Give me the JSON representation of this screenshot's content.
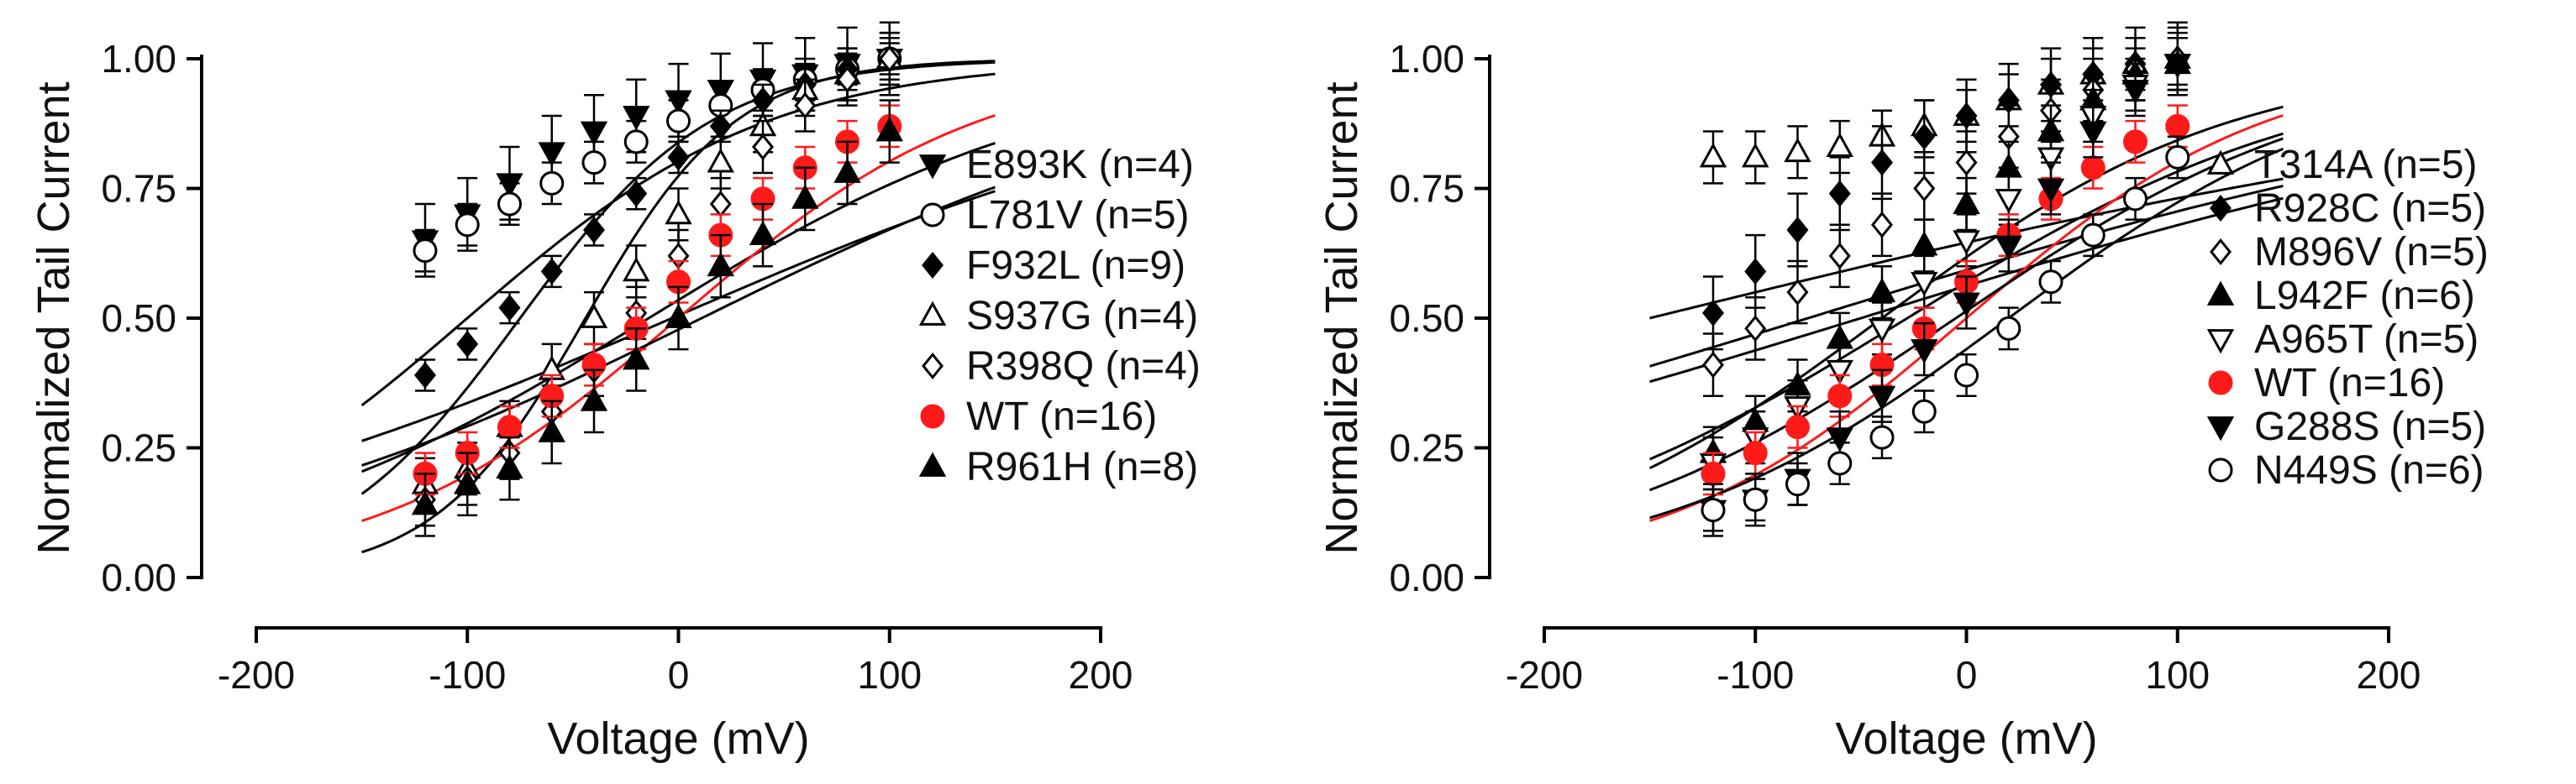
{
  "chart_data": [
    {
      "type": "scatter",
      "title": "",
      "xlabel": "Voltage (mV)",
      "ylabel": "Normalized Tail Current",
      "xlim": [
        -200,
        200
      ],
      "ylim": [
        0,
        1.0
      ],
      "xticks": [
        "-200",
        "-100",
        "0",
        "100",
        "200"
      ],
      "yticks": [
        "0.00",
        "0.25",
        "0.50",
        "0.75",
        "1.00"
      ],
      "grid": false,
      "legend_position": "right",
      "series": [
        {
          "name": "E893K (n=4)",
          "marker": "triangle-down",
          "fill": "#000000",
          "color": "#000000",
          "err": 0.07,
          "x": [
            -120,
            -100,
            -80,
            -60,
            -40,
            -20,
            0,
            20,
            40,
            60,
            80,
            100
          ],
          "y": [
            0.65,
            0.7,
            0.76,
            0.82,
            0.86,
            0.89,
            0.92,
            0.94,
            0.96,
            0.97,
            0.99,
            1.0
          ],
          "fit": [
            -75,
            0.22,
            0.0,
            1.0
          ]
        },
        {
          "name": "L781V (n=5)",
          "marker": "circle",
          "fill": "#ffffff",
          "color": "#000000",
          "err": 0.04,
          "x": [
            -120,
            -100,
            -80,
            -60,
            -40,
            -20,
            0,
            20,
            40,
            60,
            80,
            100
          ],
          "y": [
            0.63,
            0.68,
            0.72,
            0.76,
            0.8,
            0.84,
            0.88,
            0.91,
            0.94,
            0.96,
            0.98,
            1.0
          ],
          "fit": [
            -100,
            0.14,
            0.0,
            1.0
          ]
        },
        {
          "name": "F932L (n=9)",
          "marker": "diamond",
          "fill": "#000000",
          "color": "#000000",
          "err": 0.03,
          "x": [
            -120,
            -100,
            -80,
            -60,
            -40,
            -20,
            0,
            20,
            40,
            60,
            80,
            100
          ],
          "y": [
            0.39,
            0.45,
            0.52,
            0.59,
            0.67,
            0.74,
            0.81,
            0.87,
            0.92,
            0.95,
            0.98,
            1.0
          ],
          "fit": [
            -44,
            0.28,
            0.0,
            1.0
          ]
        },
        {
          "name": "S937G (n=4)",
          "marker": "triangle-up",
          "fill": "#ffffff",
          "color": "#000000",
          "err": 0.05,
          "x": [
            -120,
            -100,
            -80,
            -60,
            -40,
            -20,
            0,
            20,
            40,
            60,
            80,
            100
          ],
          "y": [
            0.18,
            0.21,
            0.29,
            0.4,
            0.5,
            0.59,
            0.7,
            0.8,
            0.87,
            0.94,
            0.97,
            1.0
          ],
          "fit": [
            -14,
            0.1,
            0.0,
            1.0
          ]
        },
        {
          "name": "R398Q (n=4)",
          "marker": "diamond",
          "fill": "#ffffff",
          "color": "#000000",
          "err": 0.05,
          "x": [
            -120,
            -100,
            -80,
            -60,
            -40,
            -20,
            0,
            20,
            40,
            60,
            80,
            100
          ],
          "y": [
            0.15,
            0.19,
            0.24,
            0.32,
            0.4,
            0.51,
            0.62,
            0.72,
            0.83,
            0.91,
            0.96,
            1.0
          ],
          "fit": [
            -3,
            0.07,
            0.0,
            1.0
          ]
        },
        {
          "name": "WT (n=16)",
          "marker": "circle",
          "fill": "#ff1a1a",
          "color": "#ff1a1a",
          "err": 0.04,
          "x": [
            -120,
            -100,
            -80,
            -60,
            -40,
            -20,
            0,
            20,
            40,
            60,
            80,
            100
          ],
          "y": [
            0.2,
            0.24,
            0.29,
            0.35,
            0.41,
            0.48,
            0.57,
            0.66,
            0.73,
            0.79,
            0.84,
            0.87
          ],
          "fit": [
            0,
            0.14,
            0.0,
            1.0
          ]
        },
        {
          "name": "R961H (n=8)",
          "marker": "triangle-up",
          "fill": "#000000",
          "color": "#000000",
          "err": 0.06,
          "x": [
            -120,
            -100,
            -80,
            -60,
            -40,
            -20,
            0,
            20,
            40,
            60,
            80,
            100
          ],
          "y": [
            0.14,
            0.18,
            0.21,
            0.28,
            0.34,
            0.42,
            0.5,
            0.6,
            0.66,
            0.73,
            0.78,
            0.86
          ],
          "fit": [
            11,
            0.08,
            0.0,
            1.0
          ]
        }
      ]
    },
    {
      "type": "scatter",
      "title": "",
      "xlabel": "Voltage (mV)",
      "ylabel": "Normalized Tail Current",
      "xlim": [
        -200,
        200
      ],
      "ylim": [
        0,
        1.0
      ],
      "xticks": [
        "-200",
        "-100",
        "0",
        "100",
        "200"
      ],
      "yticks": [
        "0.00",
        "0.25",
        "0.50",
        "0.75",
        "1.00"
      ],
      "grid": false,
      "legend_position": "right",
      "series": [
        {
          "name": "T314A (n=5)",
          "marker": "triangle-up",
          "fill": "#ffffff",
          "color": "#000000",
          "err": 0.05,
          "x": [
            -120,
            -100,
            -80,
            -60,
            -40,
            -20,
            0,
            20,
            40,
            60,
            80,
            100
          ],
          "y": [
            0.81,
            0.81,
            0.82,
            0.83,
            0.85,
            0.87,
            0.89,
            0.92,
            0.95,
            0.97,
            0.99,
            1.0
          ],
          "fit": [
            -150,
            0.04,
            0.0,
            1.0
          ]
        },
        {
          "name": "R928C (n=5)",
          "marker": "diamond",
          "fill": "#000000",
          "color": "#000000",
          "err": 0.07,
          "x": [
            -120,
            -100,
            -80,
            -60,
            -40,
            -20,
            0,
            20,
            40,
            60,
            80,
            100
          ],
          "y": [
            0.51,
            0.59,
            0.67,
            0.74,
            0.8,
            0.85,
            0.89,
            0.92,
            0.95,
            0.97,
            0.99,
            1.0
          ],
          "fit": [
            -75,
            0.05,
            0.0,
            1.0
          ]
        },
        {
          "name": "M896V (n=5)",
          "marker": "diamond",
          "fill": "#ffffff",
          "color": "#000000",
          "err": 0.06,
          "x": [
            -120,
            -100,
            -80,
            -60,
            -40,
            -20,
            0,
            20,
            40,
            60,
            80,
            100
          ],
          "y": [
            0.41,
            0.48,
            0.55,
            0.62,
            0.68,
            0.75,
            0.8,
            0.85,
            0.9,
            0.94,
            0.98,
            1.0
          ],
          "fit": [
            -50,
            0.05,
            0.0,
            1.0
          ]
        },
        {
          "name": "L942F (n=6)",
          "marker": "triangle-up",
          "fill": "#000000",
          "color": "#000000",
          "err": 0.05,
          "x": [
            -120,
            -100,
            -80,
            -60,
            -40,
            -20,
            0,
            20,
            40,
            60,
            80,
            100
          ],
          "y": [
            0.24,
            0.3,
            0.37,
            0.46,
            0.55,
            0.64,
            0.72,
            0.79,
            0.86,
            0.92,
            0.97,
            0.99
          ],
          "fit": [
            -40,
            0.12,
            0.0,
            1.0
          ]
        },
        {
          "name": "A965T (n=5)",
          "marker": "triangle-down",
          "fill": "#ffffff",
          "color": "#000000",
          "err": 0.05,
          "x": [
            -120,
            -100,
            -80,
            -60,
            -40,
            -20,
            0,
            20,
            40,
            60,
            80,
            100
          ],
          "y": [
            0.22,
            0.27,
            0.33,
            0.4,
            0.48,
            0.57,
            0.65,
            0.73,
            0.81,
            0.89,
            0.95,
            0.99
          ],
          "fit": [
            -28,
            0.1,
            0.0,
            1.0
          ]
        },
        {
          "name": "WT (n=16)",
          "marker": "circle",
          "fill": "#ff1a1a",
          "color": "#ff1a1a",
          "err": 0.04,
          "x": [
            -120,
            -100,
            -80,
            -60,
            -40,
            -20,
            0,
            20,
            40,
            60,
            80,
            100
          ],
          "y": [
            0.2,
            0.24,
            0.29,
            0.35,
            0.41,
            0.48,
            0.57,
            0.66,
            0.73,
            0.79,
            0.84,
            0.87
          ],
          "fit": [
            0,
            0.14,
            0.0,
            1.0
          ]
        },
        {
          "name": "G288S (n=5)",
          "marker": "triangle-down",
          "fill": "#000000",
          "color": "#000000",
          "err": 0.05,
          "x": [
            -120,
            -100,
            -80,
            -60,
            -40,
            -20,
            0,
            20,
            40,
            60,
            80,
            100
          ],
          "y": [
            0.13,
            0.15,
            0.19,
            0.27,
            0.35,
            0.44,
            0.53,
            0.64,
            0.75,
            0.86,
            0.94,
            0.99
          ],
          "fit": [
            -5,
            0.11,
            0.0,
            1.0
          ]
        },
        {
          "name": "N449S (n=6)",
          "marker": "circle",
          "fill": "#ffffff",
          "color": "#000000",
          "err": 0.04,
          "x": [
            -120,
            -100,
            -80,
            -60,
            -40,
            -20,
            0,
            20,
            40,
            60,
            80,
            100
          ],
          "y": [
            0.13,
            0.15,
            0.18,
            0.22,
            0.27,
            0.32,
            0.39,
            0.48,
            0.57,
            0.66,
            0.73,
            0.81
          ],
          "fit": [
            20,
            0.12,
            0.0,
            1.0
          ]
        }
      ]
    }
  ]
}
